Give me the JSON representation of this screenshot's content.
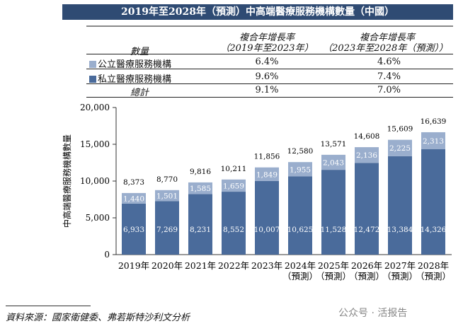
{
  "title": "2019年至2028年（預測）中高端醫療服務機構數量（中國）",
  "table": {
    "header": [
      "數量",
      "複合年增長率",
      "（2019年至2023年）",
      "複合年增長率",
      "（2023年至2028年（預測））"
    ],
    "rows": [
      {
        "label": "公立醫療服務機構",
        "c1": "6.4%",
        "c2": "4.6%",
        "color": "#9aaecd"
      },
      {
        "label": "私立醫療服務機構",
        "c1": "9.6%",
        "c2": "7.4%",
        "color": "#4a6b9b"
      },
      {
        "label": "總計",
        "c1": "9.1%",
        "c2": "7.0%"
      }
    ]
  },
  "chart_data": {
    "type": "bar",
    "stacked": true,
    "categories": [
      "2019年",
      "2020年",
      "2021年",
      "2022年",
      "2023年",
      "2024年\n（預測）",
      "2025年\n（預測）",
      "2026年\n（預測）",
      "2027年\n（預測）",
      "2028年\n（預測）"
    ],
    "series": [
      {
        "name": "私立醫療服務機構",
        "color": "#4a6b9b",
        "values": [
          6933,
          7269,
          8231,
          8552,
          10007,
          10625,
          11528,
          12472,
          13384,
          14326
        ],
        "labels": [
          "6,933",
          "7,269",
          "8,231",
          "8,552",
          "10,007",
          "10,625",
          "11,528",
          "12,472",
          "13,384",
          "14,326"
        ]
      },
      {
        "name": "公立醫療服務機構",
        "color": "#9aaecd",
        "values": [
          1440,
          1501,
          1585,
          1659,
          1849,
          1955,
          2043,
          2136,
          2225,
          2313
        ],
        "labels": [
          "1,440",
          "1,501",
          "1,585",
          "1,659",
          "1,849",
          "1,955",
          "2,043",
          "2,136",
          "2,225",
          "2,313"
        ]
      }
    ],
    "totals": [
      "8,373",
      "8,770",
      "9,816",
      "10,211",
      "11,856",
      "12,580",
      "13,571",
      "14,608",
      "15,609",
      "16,639"
    ],
    "ylabel": "中高端醫療服務機構數量",
    "ylim": [
      0,
      20000
    ],
    "yticks": [
      "0",
      "5,000",
      "10,000",
      "15,000",
      "20,000"
    ],
    "grid": false
  },
  "source": "資料來源：國家衛健委、弗若斯特沙利文分析",
  "watermark": "公众号 · 活报告"
}
